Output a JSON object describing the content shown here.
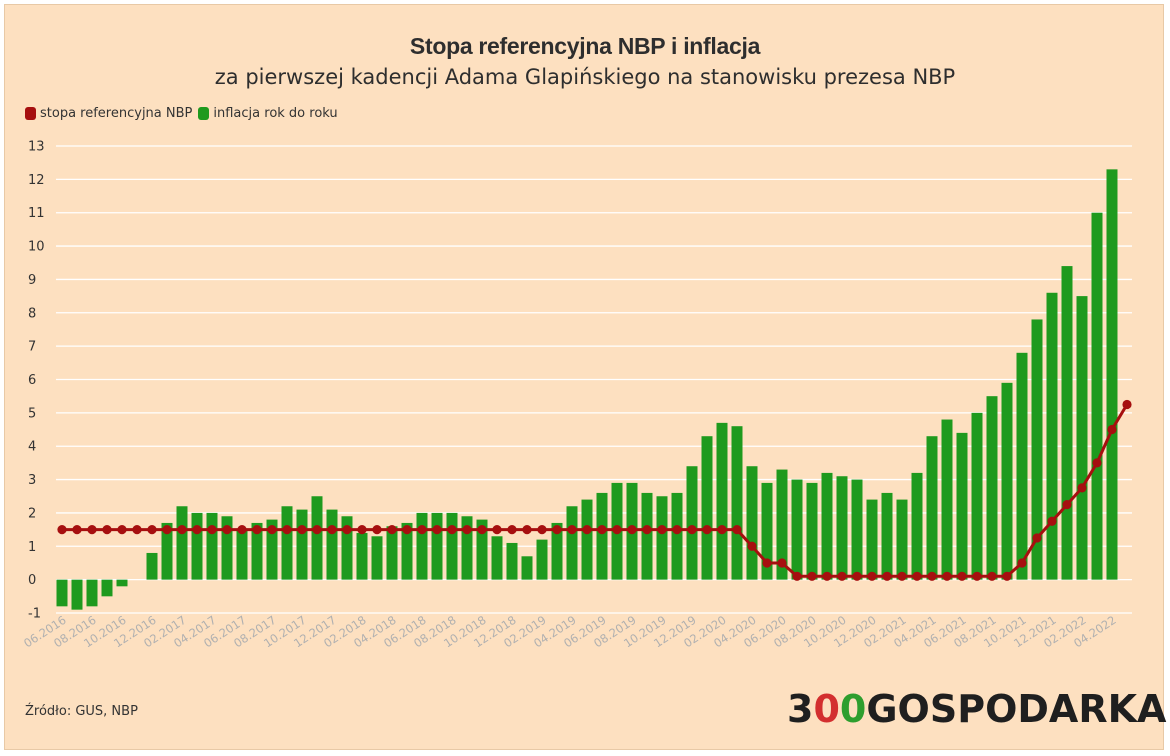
{
  "header": {
    "title": "Stopa referencyjna NBP i inflacja",
    "subtitle": "za pierwszej kadencji Adama Glapińskiego na stanowisku prezesa NBP"
  },
  "legend": {
    "rate_label": "stopa referencyjna NBP",
    "inflation_label": "inflacja rok do roku"
  },
  "footer": {
    "source": "Źródło: GUS, NBP",
    "logo_part1": "3",
    "logo_part2": "0",
    "logo_part3": "0",
    "logo_part4": "GOSPODARKA"
  },
  "colors": {
    "bar": "#1e9a1e",
    "line": "#a60f0f",
    "grid": "#ffffff",
    "background": "#fde0c0",
    "tick_text": "#333333",
    "date_text": "#b0b0b0"
  },
  "chart_data": {
    "type": "bar",
    "title": "Stopa referencyjna NBP i inflacja",
    "xlabel": "",
    "ylabel": "",
    "ylim": [
      -1,
      13
    ],
    "yticks": [
      -1,
      0,
      1,
      2,
      3,
      4,
      5,
      6,
      7,
      8,
      9,
      10,
      11,
      12,
      13
    ],
    "grid": true,
    "legend_position": "top-left",
    "categories": [
      "06.2016",
      "07.2016",
      "08.2016",
      "09.2016",
      "10.2016",
      "11.2016",
      "12.2016",
      "01.2017",
      "02.2017",
      "03.2017",
      "04.2017",
      "05.2017",
      "06.2017",
      "07.2017",
      "08.2017",
      "09.2017",
      "10.2017",
      "11.2017",
      "12.2017",
      "01.2018",
      "02.2018",
      "03.2018",
      "04.2018",
      "05.2018",
      "06.2018",
      "07.2018",
      "08.2018",
      "09.2018",
      "10.2018",
      "11.2018",
      "12.2018",
      "01.2019",
      "02.2019",
      "03.2019",
      "04.2019",
      "05.2019",
      "06.2019",
      "07.2019",
      "08.2019",
      "09.2019",
      "10.2019",
      "11.2019",
      "12.2019",
      "01.2020",
      "02.2020",
      "03.2020",
      "04.2020",
      "05.2020",
      "06.2020",
      "07.2020",
      "08.2020",
      "09.2020",
      "10.2020",
      "11.2020",
      "12.2020",
      "01.2021",
      "02.2021",
      "03.2021",
      "04.2021",
      "05.2021",
      "06.2021",
      "07.2021",
      "08.2021",
      "09.2021",
      "10.2021",
      "11.2021",
      "12.2021",
      "01.2022",
      "02.2022",
      "03.2022",
      "04.2022",
      "05.2022"
    ],
    "tick_labels": [
      "06.2016",
      "08.2016",
      "10.2016",
      "12.2016",
      "02.2017",
      "04.2017",
      "06.2017",
      "08.2017",
      "10.2017",
      "12.2017",
      "02.2018",
      "04.2018",
      "06.2018",
      "08.2018",
      "10.2018",
      "12.2018",
      "02.2019",
      "04.2019",
      "06.2019",
      "08.2019",
      "10.2019",
      "12.2019",
      "02.2020",
      "04.2020",
      "06.2020",
      "08.2020",
      "10.2020",
      "12.2020",
      "02.2021",
      "04.2021",
      "06.2021",
      "08.2021",
      "10.2021",
      "12.2021",
      "02.2022",
      "04.2022"
    ],
    "series": [
      {
        "name": "inflacja rok do roku",
        "type": "bar",
        "values": [
          -0.8,
          -0.9,
          -0.8,
          -0.5,
          -0.2,
          0.0,
          0.8,
          1.7,
          2.2,
          2.0,
          2.0,
          1.9,
          1.5,
          1.7,
          1.8,
          2.2,
          2.1,
          2.5,
          2.1,
          1.9,
          1.4,
          1.3,
          1.6,
          1.7,
          2.0,
          2.0,
          2.0,
          1.9,
          1.8,
          1.3,
          1.1,
          0.7,
          1.2,
          1.7,
          2.2,
          2.4,
          2.6,
          2.9,
          2.9,
          2.6,
          2.5,
          2.6,
          3.4,
          4.3,
          4.7,
          4.6,
          3.4,
          2.9,
          3.3,
          3.0,
          2.9,
          3.2,
          3.1,
          3.0,
          2.4,
          2.6,
          2.4,
          3.2,
          4.3,
          4.8,
          4.4,
          5.0,
          5.5,
          5.9,
          6.8,
          7.8,
          8.6,
          9.4,
          8.5,
          11.0,
          12.3,
          null
        ]
      },
      {
        "name": "stopa referencyjna NBP",
        "type": "line",
        "values": [
          1.5,
          1.5,
          1.5,
          1.5,
          1.5,
          1.5,
          1.5,
          1.5,
          1.5,
          1.5,
          1.5,
          1.5,
          1.5,
          1.5,
          1.5,
          1.5,
          1.5,
          1.5,
          1.5,
          1.5,
          1.5,
          1.5,
          1.5,
          1.5,
          1.5,
          1.5,
          1.5,
          1.5,
          1.5,
          1.5,
          1.5,
          1.5,
          1.5,
          1.5,
          1.5,
          1.5,
          1.5,
          1.5,
          1.5,
          1.5,
          1.5,
          1.5,
          1.5,
          1.5,
          1.5,
          1.5,
          1.0,
          0.5,
          0.5,
          0.1,
          0.1,
          0.1,
          0.1,
          0.1,
          0.1,
          0.1,
          0.1,
          0.1,
          0.1,
          0.1,
          0.1,
          0.1,
          0.1,
          0.1,
          0.5,
          1.25,
          1.75,
          2.25,
          2.75,
          3.5,
          4.5,
          5.25
        ]
      }
    ]
  }
}
